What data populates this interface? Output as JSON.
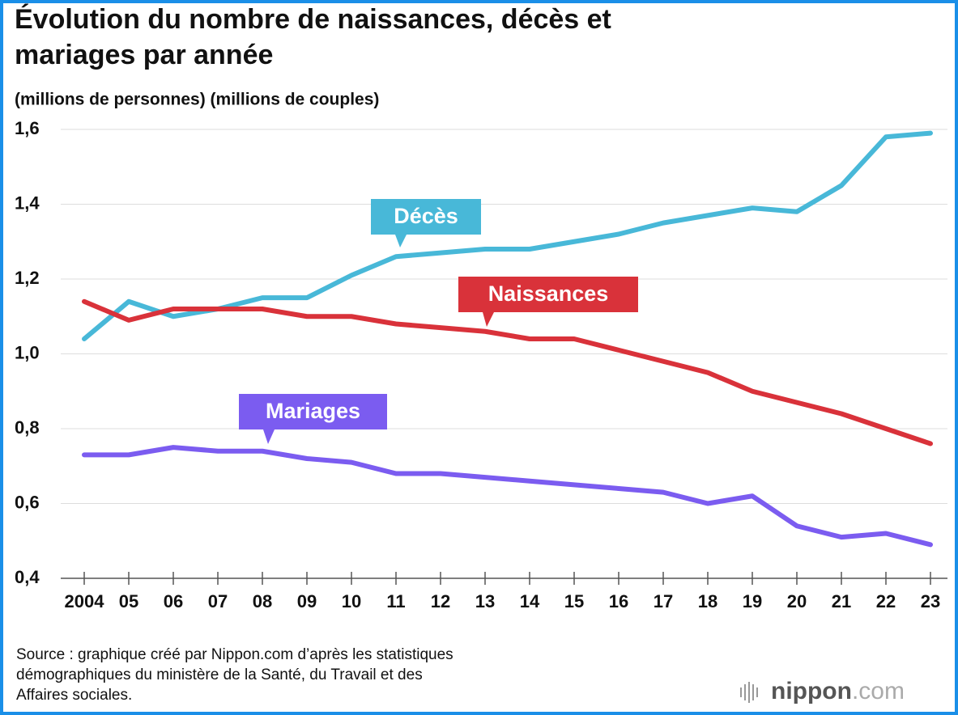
{
  "chart_data": {
    "type": "line",
    "title": [
      "Évolution du nombre de naissances, décès et",
      "mariages par année"
    ],
    "ylabel": "(millions de personnes) (millions de couples)",
    "categories": [
      "2004",
      "05",
      "06",
      "07",
      "08",
      "09",
      "10",
      "11",
      "12",
      "13",
      "14",
      "15",
      "16",
      "17",
      "18",
      "19",
      "20",
      "21",
      "22",
      "23"
    ],
    "series": [
      {
        "name": "Décès",
        "color": "#48b8d8",
        "values": [
          1.04,
          1.14,
          1.1,
          1.12,
          1.15,
          1.15,
          1.21,
          1.26,
          1.27,
          1.28,
          1.28,
          1.3,
          1.32,
          1.35,
          1.37,
          1.39,
          1.38,
          1.45,
          1.58,
          1.59
        ]
      },
      {
        "name": "Naissances",
        "color": "#d9323a",
        "values": [
          1.14,
          1.09,
          1.12,
          1.12,
          1.12,
          1.1,
          1.1,
          1.08,
          1.07,
          1.06,
          1.04,
          1.04,
          1.01,
          0.98,
          0.95,
          0.9,
          0.87,
          0.84,
          0.8,
          0.76
        ]
      },
      {
        "name": "Mariages",
        "color": "#7b5cf0",
        "values": [
          0.73,
          0.73,
          0.75,
          0.74,
          0.74,
          0.72,
          0.71,
          0.68,
          0.68,
          0.67,
          0.66,
          0.65,
          0.64,
          0.63,
          0.6,
          0.62,
          0.54,
          0.51,
          0.52,
          0.49
        ]
      }
    ],
    "ylim": [
      0.4,
      1.6
    ],
    "yticks": [
      {
        "value": 0.4,
        "label": "0,4"
      },
      {
        "value": 0.6,
        "label": "0,6"
      },
      {
        "value": 0.8,
        "label": "0,8"
      },
      {
        "value": 1.0,
        "label": "1,0"
      },
      {
        "value": 1.2,
        "label": "1,2"
      },
      {
        "value": 1.4,
        "label": "1,4"
      },
      {
        "value": 1.6,
        "label": "1,6"
      }
    ],
    "grid": true,
    "source": [
      "Source : graphique créé par Nippon.com d’après les statistiques",
      "démographiques du ministère de la Santé, du Travail et des",
      "Affaires sociales."
    ],
    "logo": [
      "nippon",
      ".com"
    ]
  }
}
